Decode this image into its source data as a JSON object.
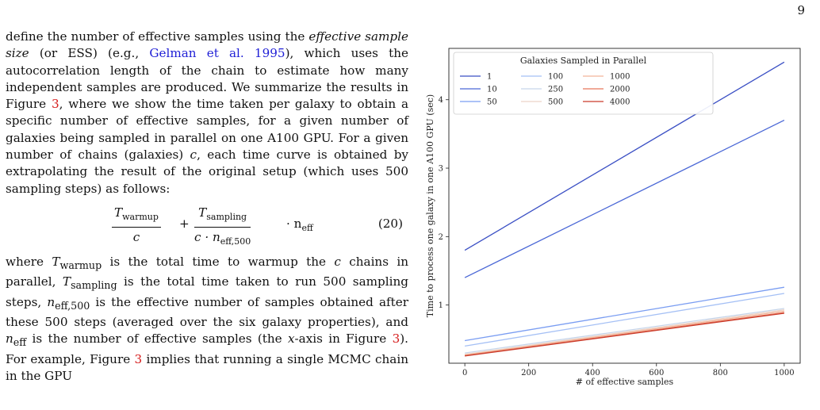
{
  "page": {
    "number": "9",
    "para1": {
      "t1": "define the number of effective samples using the ",
      "t2": "effective sample size",
      "t3": " (or ESS) (e.g., ",
      "cite": "Gelman et al. 1995",
      "t4": "), which uses the autocorrelation length of the chain to estimate how many independent samples are produced. We summarize the results in Figure ",
      "ref1": "3",
      "t5": ", where we show the time taken per galaxy to obtain a specific number of effective samples, for a given number of galaxies being sampled in parallel on one A100 GPU. For a given number of chains (galaxies) ",
      "c": "c",
      "t6": ", each time curve is obtained by extrapolating the result of the original setup (which uses 500 sampling steps) as follows:"
    },
    "equation": {
      "t_warmup": "T",
      "warmup_sub": "warmup",
      "c1": "c",
      "plus": "+",
      "t_sampling": "T",
      "sampling_sub": "sampling",
      "den2": "c · n",
      "den2_sub": "eff,500",
      "dot": "· n",
      "neff_sub": "eff",
      "number": "(20)"
    },
    "para2": {
      "t1": "where ",
      "tw": "T",
      "tw_sub": "warmup",
      "t2": " is the total time to warmup the ",
      "c": "c",
      "t3": " chains in parallel, ",
      "ts": "T",
      "ts_sub": "sampling",
      "t4": " is the total time taken to run 500 sampling steps, ",
      "n500": "n",
      "n500_sub": "eff,500",
      "t5": " is the effective number of samples obtained after these 500 steps (averaged over the six galaxy properties), and ",
      "neff": "n",
      "neff_sub": "eff",
      "t6": " is the number of effective samples (the ",
      "x": "x",
      "t7": "-axis in Figure ",
      "ref1": "3",
      "t8": "). For example, Figure ",
      "ref2": "3",
      "t9": " implies that running a single MCMC chain in the GPU"
    }
  },
  "chart_data": {
    "type": "line",
    "title": "",
    "xlabel": "# of effective samples",
    "ylabel": "Time to process one galaxy in one A100 GPU (sec)",
    "xlim": [
      -50,
      1050
    ],
    "ylim": [
      0.15,
      4.75
    ],
    "xticks": [
      0,
      200,
      400,
      600,
      800,
      1000
    ],
    "yticks": [
      1,
      2,
      3,
      4
    ],
    "legend": {
      "title": "Galaxies Sampled in Parallel",
      "position": "top",
      "columns": 4
    },
    "series": [
      {
        "name": "1",
        "color": "#3a4fc4",
        "x": [
          0,
          1000
        ],
        "y": [
          1.8,
          4.55
        ]
      },
      {
        "name": "10",
        "color": "#4a67d6",
        "x": [
          0,
          1000
        ],
        "y": [
          1.4,
          3.7
        ]
      },
      {
        "name": "50",
        "color": "#7a9df2",
        "x": [
          0,
          1000
        ],
        "y": [
          0.48,
          1.26
        ]
      },
      {
        "name": "100",
        "color": "#a5c0f5",
        "x": [
          0,
          1000
        ],
        "y": [
          0.4,
          1.17
        ]
      },
      {
        "name": "250",
        "color": "#c6d5ea",
        "x": [
          0,
          1000
        ],
        "y": [
          0.3,
          0.95
        ]
      },
      {
        "name": "500",
        "color": "#ecd3c6",
        "x": [
          0,
          1000
        ],
        "y": [
          0.28,
          0.93
        ]
      },
      {
        "name": "1000",
        "color": "#f2b49a",
        "x": [
          0,
          1000
        ],
        "y": [
          0.27,
          0.91
        ]
      },
      {
        "name": "2000",
        "color": "#e7765a",
        "x": [
          0,
          1000
        ],
        "y": [
          0.26,
          0.89
        ]
      },
      {
        "name": "4000",
        "color": "#c93a2a",
        "x": [
          0,
          1000
        ],
        "y": [
          0.255,
          0.88
        ]
      }
    ]
  }
}
